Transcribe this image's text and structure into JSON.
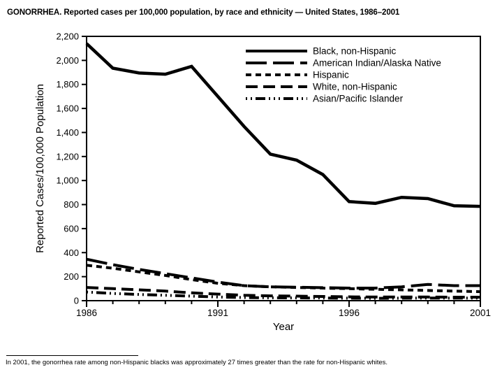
{
  "title": "GONORRHEA. Reported cases per 100,000 population, by race and ethnicity — United States, 1986–2001",
  "footnote": "In 2001, the gonorrhea rate among non-Hispanic blacks was approximately 27 times greater than the rate for non-Hispanic whites.",
  "colors": {
    "line": "#000000",
    "background": "#ffffff"
  },
  "chart_data": {
    "type": "line",
    "title": "GONORRHEA. Reported cases per 100,000 population, by race and ethnicity — United States, 1986–2001",
    "xlabel": "Year",
    "ylabel": "Reported Cases/100,000 Population",
    "x": [
      1986,
      1987,
      1988,
      1989,
      1990,
      1991,
      1992,
      1993,
      1994,
      1995,
      1996,
      1997,
      1998,
      1999,
      2000,
      2001
    ],
    "labeled_xticks": [
      1986,
      1991,
      1996,
      2001
    ],
    "ylim": [
      0,
      2200
    ],
    "ytick_step": 200,
    "grid": false,
    "legend_position": "top-right-inside",
    "series": [
      {
        "name": "Black, non-Hispanic",
        "line_style": "solid",
        "values": [
          2140,
          1935,
          1895,
          1885,
          1950,
          1700,
          1450,
          1220,
          1170,
          1050,
          825,
          810,
          860,
          850,
          790,
          785
        ]
      },
      {
        "name": "American Indian/Alaska Native",
        "line_style": "long-dash",
        "values": [
          345,
          300,
          260,
          225,
          190,
          155,
          125,
          115,
          112,
          108,
          105,
          105,
          115,
          135,
          125,
          125
        ]
      },
      {
        "name": "Hispanic",
        "line_style": "short-dash",
        "values": [
          295,
          270,
          240,
          210,
          175,
          145,
          125,
          115,
          110,
          105,
          100,
          95,
          90,
          85,
          80,
          75
        ]
      },
      {
        "name": "White, non-Hispanic",
        "line_style": "medium-dash",
        "values": [
          110,
          100,
          90,
          80,
          65,
          55,
          45,
          40,
          38,
          35,
          32,
          30,
          30,
          30,
          29,
          29
        ]
      },
      {
        "name": "Asian/Pacific Islander",
        "line_style": "dot-dot-dash",
        "values": [
          72,
          60,
          52,
          45,
          38,
          30,
          26,
          24,
          23,
          22,
          21,
          20,
          21,
          22,
          22,
          22
        ]
      }
    ]
  }
}
